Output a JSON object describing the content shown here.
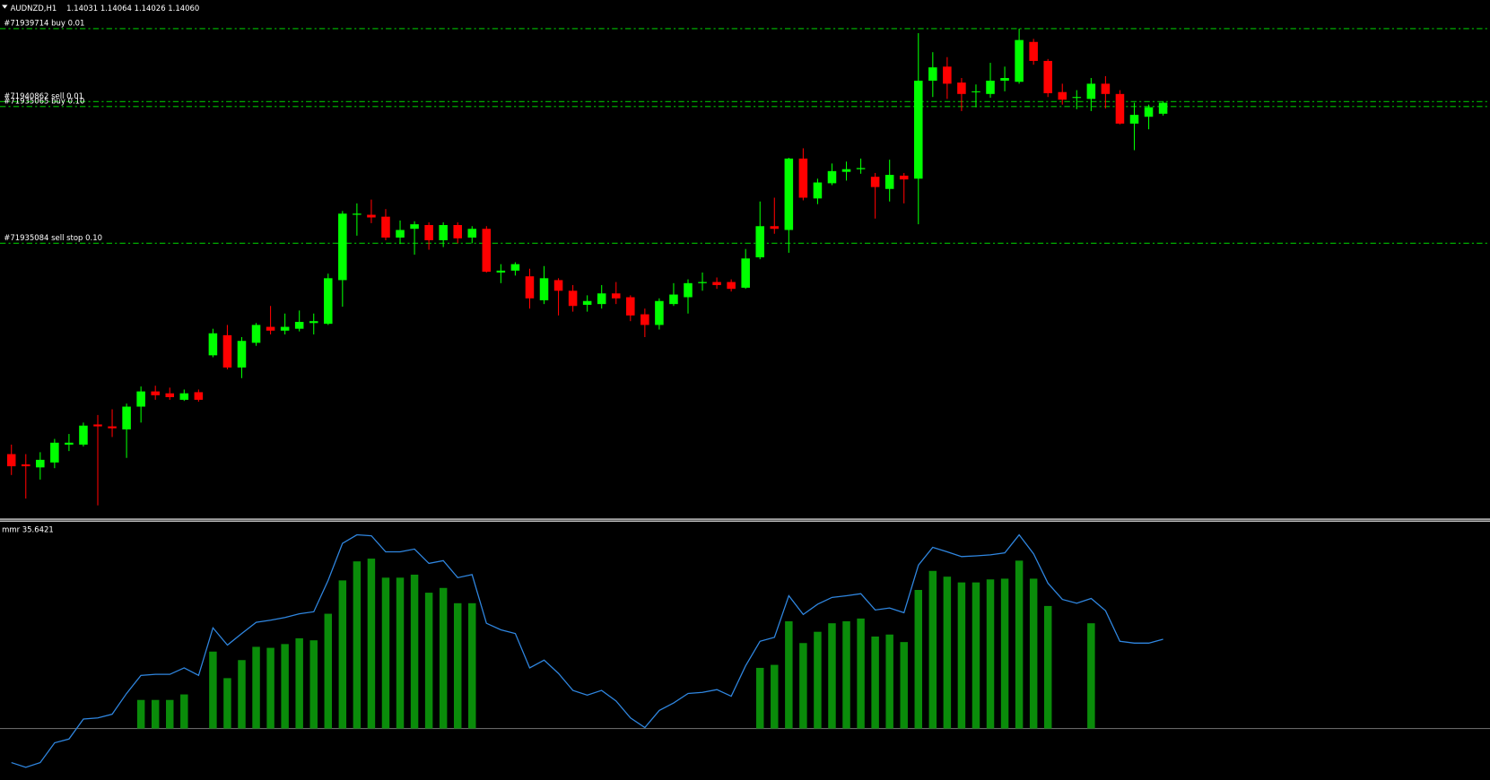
{
  "chart_data": [
    {
      "type": "candlestick",
      "title": "AUDNZD,H1",
      "ohlc_label": "1.14031 1.14064 1.14026 1.14060",
      "ylim": [
        1.12968,
        1.1433
      ],
      "up_color": "#00ff00",
      "down_color": "#ff0000",
      "open": [
        1.13135,
        1.13108,
        1.131,
        1.13113,
        1.1316,
        1.1316,
        1.13213,
        1.13208,
        1.132,
        1.1326,
        1.133,
        1.13295,
        1.13278,
        1.13298,
        1.13395,
        1.13448,
        1.13363,
        1.13428,
        1.1347,
        1.1346,
        1.13465,
        1.1348,
        1.13478,
        1.13593,
        1.13765,
        1.13765,
        1.1376,
        1.13705,
        1.13728,
        1.13738,
        1.13698,
        1.13738,
        1.13705,
        1.13728,
        1.13613,
        1.13618,
        1.13603,
        1.1354,
        1.13593,
        1.13565,
        1.13528,
        1.1353,
        1.13558,
        1.13548,
        1.13503,
        1.13475,
        1.1353,
        1.13548,
        1.13585,
        1.13588,
        1.13588,
        1.13573,
        1.13653,
        1.13735,
        1.13725,
        1.13913,
        1.13808,
        1.13848,
        1.13878,
        1.13885,
        1.13865,
        1.13833,
        1.13868,
        1.1386,
        1.14118,
        1.14155,
        1.14113,
        1.14088,
        1.14083,
        1.14118,
        1.14115,
        1.1422,
        1.1417,
        1.14088,
        1.14073,
        1.1407,
        1.1411,
        1.14083,
        1.14005,
        1.14023,
        1.14031
      ],
      "high": [
        1.1316,
        1.13135,
        1.1314,
        1.13175,
        1.13188,
        1.13218,
        1.13238,
        1.13253,
        1.13268,
        1.13313,
        1.13315,
        1.1331,
        1.13305,
        1.13305,
        1.13465,
        1.13475,
        1.13443,
        1.1348,
        1.13525,
        1.13505,
        1.13513,
        1.13505,
        1.1361,
        1.13775,
        1.13795,
        1.13805,
        1.1378,
        1.1375,
        1.13748,
        1.13745,
        1.13745,
        1.13745,
        1.13735,
        1.13735,
        1.13635,
        1.1364,
        1.13623,
        1.1363,
        1.13598,
        1.1358,
        1.13553,
        1.1358,
        1.13588,
        1.13553,
        1.13518,
        1.13545,
        1.13585,
        1.13595,
        1.13613,
        1.136,
        1.13595,
        1.13675,
        1.138,
        1.1381,
        1.13915,
        1.1394,
        1.1386,
        1.139,
        1.13905,
        1.13913,
        1.13875,
        1.1391,
        1.13875,
        1.14243,
        1.14193,
        1.1418,
        1.14125,
        1.14108,
        1.14165,
        1.14155,
        1.14255,
        1.14228,
        1.14175,
        1.1411,
        1.14093,
        1.14125,
        1.1413,
        1.14093,
        1.1406,
        1.14055,
        1.14064
      ],
      "low": [
        1.1308,
        1.13018,
        1.13068,
        1.13098,
        1.13143,
        1.13155,
        1.13,
        1.1318,
        1.13125,
        1.13218,
        1.13278,
        1.13278,
        1.13275,
        1.13273,
        1.1339,
        1.13358,
        1.13335,
        1.1342,
        1.1345,
        1.1345,
        1.13458,
        1.1345,
        1.13475,
        1.13523,
        1.1371,
        1.13743,
        1.13698,
        1.13688,
        1.1366,
        1.13673,
        1.1368,
        1.1369,
        1.1369,
        1.13613,
        1.13585,
        1.13605,
        1.13518,
        1.1353,
        1.135,
        1.1351,
        1.1351,
        1.13518,
        1.1353,
        1.13485,
        1.13443,
        1.13463,
        1.13525,
        1.13505,
        1.13565,
        1.1357,
        1.13563,
        1.1357,
        1.13648,
        1.13715,
        1.13665,
        1.13803,
        1.13793,
        1.13843,
        1.13855,
        1.13873,
        1.13755,
        1.138,
        1.13795,
        1.1374,
        1.14075,
        1.1407,
        1.14038,
        1.14048,
        1.14073,
        1.1409,
        1.1411,
        1.1416,
        1.14075,
        1.14055,
        1.14043,
        1.14038,
        1.14045,
        1.14003,
        1.13935,
        1.1399,
        1.14026
      ],
      "close": [
        1.13103,
        1.13103,
        1.1312,
        1.13165,
        1.13165,
        1.1321,
        1.13208,
        1.13203,
        1.1326,
        1.133,
        1.1329,
        1.13285,
        1.13295,
        1.13278,
        1.13453,
        1.13363,
        1.13433,
        1.13475,
        1.1346,
        1.1347,
        1.13483,
        1.13485,
        1.13598,
        1.13768,
        1.13768,
        1.13758,
        1.13705,
        1.13725,
        1.1374,
        1.13698,
        1.13738,
        1.13703,
        1.13728,
        1.13615,
        1.13618,
        1.13635,
        1.13545,
        1.13598,
        1.13565,
        1.13525,
        1.13538,
        1.13558,
        1.13545,
        1.135,
        1.13475,
        1.13538,
        1.13555,
        1.13585,
        1.13588,
        1.1358,
        1.1357,
        1.1365,
        1.13735,
        1.13728,
        1.13913,
        1.1381,
        1.1385,
        1.1388,
        1.13885,
        1.13888,
        1.13838,
        1.1387,
        1.13858,
        1.14118,
        1.14153,
        1.1411,
        1.14083,
        1.1409,
        1.14118,
        1.14125,
        1.14225,
        1.1417,
        1.14085,
        1.14068,
        1.14075,
        1.1411,
        1.14083,
        1.14005,
        1.14028,
        1.14048,
        1.1406
      ],
      "orders": {
        "color": "#00c000",
        "labels": [
          "#71939714 buy 0.01",
          "#71940862 sell 0.01",
          "#71935065 buy 0.10",
          "#71935084 sell stop 0.10"
        ],
        "prices": [
          1.14255,
          1.14063,
          1.1405,
          1.1369
        ]
      }
    },
    {
      "type": "indicator",
      "label": "mmr 35.6421",
      "ylim": [
        -20.5,
        82.6
      ],
      "line": {
        "color": "#2f86e0",
        "values": [
          -13.6,
          -15.5,
          -13.6,
          -5.7,
          -4.2,
          3.8,
          4.2,
          5.7,
          14.0,
          21.2,
          21.6,
          21.6,
          24.2,
          21.2,
          40.2,
          33.3,
          37.9,
          42.4,
          43.2,
          44.3,
          45.8,
          46.6,
          59.1,
          73.9,
          77.3,
          76.9,
          70.5,
          70.5,
          71.6,
          65.9,
          67.0,
          60.2,
          61.4,
          42.0,
          39.4,
          37.9,
          24.2,
          27.3,
          22.0,
          15.2,
          13.3,
          15.2,
          11.0,
          4.2,
          0.4,
          7.2,
          10.2,
          14.0,
          14.4,
          15.5,
          12.9,
          25.0,
          34.8,
          36.4,
          53.0,
          45.5,
          49.6,
          52.3,
          53.0,
          53.8,
          47.3,
          48.1,
          46.2,
          65.2,
          72.3,
          70.5,
          68.6,
          68.9,
          69.3,
          70.1,
          77.3,
          69.7,
          58.0,
          51.5,
          50.0,
          51.9,
          47.0,
          34.8,
          34.1,
          34.1,
          35.6421
        ]
      },
      "histogram": {
        "color": "#0a8c0a",
        "values": [
          null,
          null,
          null,
          null,
          null,
          null,
          null,
          null,
          null,
          11.4,
          11.4,
          11.4,
          13.6,
          null,
          30.7,
          20.1,
          27.3,
          32.6,
          32.2,
          33.7,
          36.0,
          35.2,
          45.8,
          59.1,
          66.7,
          67.8,
          60.2,
          60.2,
          61.4,
          54.2,
          56.1,
          50.0,
          50.0,
          null,
          null,
          null,
          null,
          null,
          null,
          null,
          null,
          null,
          null,
          null,
          null,
          null,
          null,
          null,
          null,
          null,
          null,
          null,
          24.2,
          25.4,
          42.8,
          34.1,
          38.6,
          42.0,
          42.8,
          43.9,
          36.7,
          37.5,
          34.5,
          55.3,
          62.9,
          60.6,
          58.3,
          58.3,
          59.5,
          59.8,
          67.0,
          59.8,
          48.9,
          null,
          null,
          42.0,
          null,
          null,
          null,
          null,
          null
        ]
      }
    }
  ]
}
